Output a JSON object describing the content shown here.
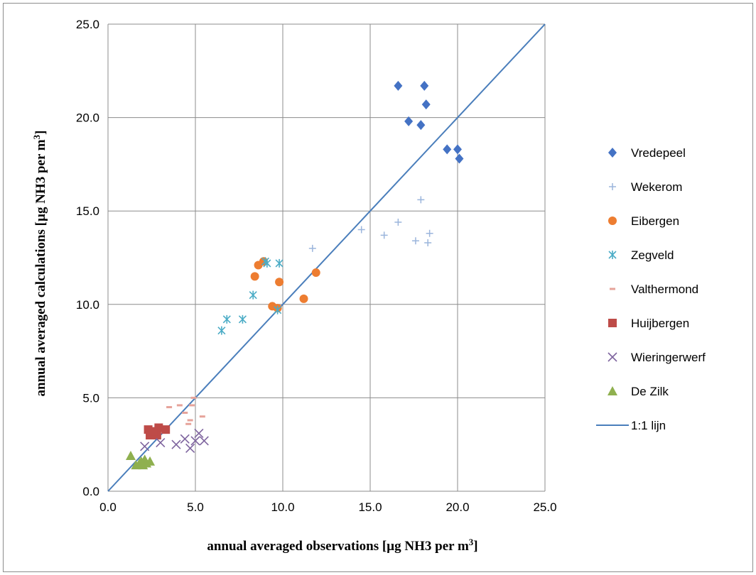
{
  "chart_data": {
    "type": "scatter",
    "xlabel": "annual averaged observations [µg NH3 per m",
    "xlabel_sup": "3",
    "xlabel_end": "]",
    "ylabel": "annual averaged calculations [µg NH3 per m",
    "ylabel_sup": "3",
    "ylabel_end": "]",
    "xlim": [
      0,
      25
    ],
    "ylim": [
      0,
      25
    ],
    "x_ticks": [
      "0.0",
      "5.0",
      "10.0",
      "15.0",
      "20.0",
      "25.0"
    ],
    "y_ticks": [
      "0.0",
      "5.0",
      "10.0",
      "15.0",
      "20.0",
      "25.0"
    ],
    "grid": true,
    "legend_position": "right",
    "series": [
      {
        "name": "Vredepeel",
        "marker": "diamond",
        "color": "#4472c4",
        "x": [
          16.6,
          18.1,
          18.2,
          17.2,
          17.9,
          19.4,
          20.0,
          20.1
        ],
        "y": [
          21.7,
          21.7,
          20.7,
          19.8,
          19.6,
          18.3,
          18.3,
          17.8
        ]
      },
      {
        "name": "Wekerom",
        "marker": "plus",
        "color": "#9bb5dc",
        "x": [
          11.7,
          14.5,
          15.8,
          16.6,
          17.6,
          17.9,
          18.3,
          18.4
        ],
        "y": [
          13.0,
          14.0,
          13.7,
          14.4,
          13.4,
          15.6,
          13.3,
          13.8
        ]
      },
      {
        "name": "Eibergen",
        "marker": "circle",
        "color": "#ed7d31",
        "x": [
          8.9,
          8.6,
          8.4,
          9.8,
          11.9,
          9.4,
          9.7,
          11.2
        ],
        "y": [
          12.3,
          12.1,
          11.5,
          11.2,
          11.7,
          9.9,
          9.8,
          10.3
        ]
      },
      {
        "name": "Zegveld",
        "marker": "asterisk",
        "color": "#4bacc6",
        "x": [
          9.0,
          9.1,
          9.8,
          8.3,
          6.8,
          7.7,
          6.5,
          9.7
        ],
        "y": [
          12.3,
          12.2,
          12.2,
          10.5,
          9.2,
          9.2,
          8.6,
          9.7
        ]
      },
      {
        "name": "Valthermond",
        "marker": "dash",
        "color": "#e6a39a",
        "x": [
          3.5,
          4.1,
          4.9,
          4.8,
          4.4,
          5.4,
          4.7,
          4.6
        ],
        "y": [
          4.5,
          4.6,
          5.0,
          4.6,
          4.2,
          4.0,
          3.8,
          3.6
        ]
      },
      {
        "name": "Huijbergen",
        "marker": "square",
        "color": "#be4b48",
        "x": [
          2.3,
          2.9,
          3.3,
          2.5,
          2.7,
          2.4,
          2.8,
          2.6
        ],
        "y": [
          3.3,
          3.4,
          3.3,
          3.1,
          3.2,
          3.0,
          3.0,
          3.2
        ]
      },
      {
        "name": "Wieringerwerf",
        "marker": "x",
        "color": "#7e649e",
        "x": [
          2.1,
          3.0,
          3.9,
          4.4,
          4.7,
          5.0,
          5.2,
          5.5
        ],
        "y": [
          2.4,
          2.6,
          2.5,
          2.8,
          2.3,
          2.7,
          3.1,
          2.7
        ]
      },
      {
        "name": "De Zilk",
        "marker": "triangle",
        "color": "#8fb04f",
        "x": [
          1.3,
          1.6,
          1.8,
          1.9,
          2.0,
          2.1,
          2.2,
          2.4
        ],
        "y": [
          1.9,
          1.4,
          1.5,
          1.6,
          1.4,
          1.7,
          1.5,
          1.6
        ]
      }
    ],
    "reference_line": {
      "name": "1:1 lijn",
      "color": "#4a7ebb",
      "from": [
        0,
        0
      ],
      "to": [
        25,
        25
      ]
    }
  }
}
